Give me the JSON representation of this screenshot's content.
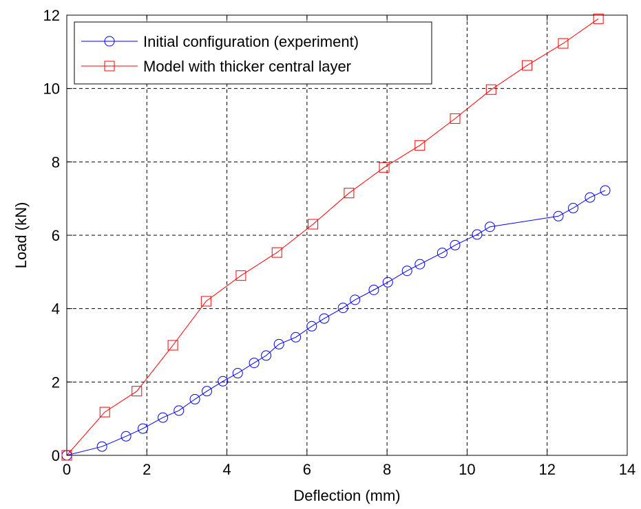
{
  "chart_data": {
    "type": "line",
    "title": "",
    "xlabel": "Deflection (mm)",
    "ylabel": "Load (kN)",
    "xlim": [
      0,
      14
    ],
    "ylim": [
      0,
      12
    ],
    "xticks": [
      0,
      2,
      4,
      6,
      8,
      10,
      12,
      14
    ],
    "yticks": [
      0,
      2,
      4,
      6,
      8,
      10,
      12
    ],
    "xtick_labels": [
      "0",
      "2",
      "4",
      "6",
      "8",
      "10",
      "12",
      "14"
    ],
    "ytick_labels": [
      "0",
      "2",
      "4",
      "6",
      "8",
      "10",
      "12"
    ],
    "grid": true,
    "legend_position": "top-left",
    "series": [
      {
        "name": "Initial configuration (experiment)",
        "color": "#0000ff",
        "marker": "circle",
        "x": [
          0,
          0.88,
          1.48,
          1.9,
          2.4,
          2.8,
          3.2,
          3.5,
          3.9,
          4.27,
          4.68,
          4.98,
          5.3,
          5.72,
          6.12,
          6.43,
          6.9,
          7.2,
          7.67,
          8.02,
          8.5,
          8.82,
          9.38,
          9.7,
          10.25,
          10.57,
          12.28,
          12.65,
          13.07,
          13.45
        ],
        "y": [
          0,
          0.24,
          0.52,
          0.73,
          1.03,
          1.22,
          1.53,
          1.75,
          2.02,
          2.24,
          2.52,
          2.72,
          3.03,
          3.22,
          3.52,
          3.73,
          4.02,
          4.24,
          4.51,
          4.72,
          5.03,
          5.21,
          5.52,
          5.73,
          6.02,
          6.23,
          6.52,
          6.74,
          7.03,
          7.22
        ]
      },
      {
        "name": "Model with thicker central layer",
        "color": "#ff0000",
        "marker": "square",
        "x": [
          0,
          0.95,
          1.75,
          2.65,
          3.48,
          4.35,
          5.25,
          6.15,
          7.05,
          7.93,
          8.82,
          9.7,
          10.6,
          11.5,
          12.4,
          13.28
        ],
        "y": [
          0,
          1.18,
          1.75,
          3.0,
          4.2,
          4.9,
          5.53,
          6.3,
          7.15,
          7.85,
          8.45,
          9.18,
          9.97,
          10.63,
          11.23,
          11.9
        ]
      }
    ]
  }
}
